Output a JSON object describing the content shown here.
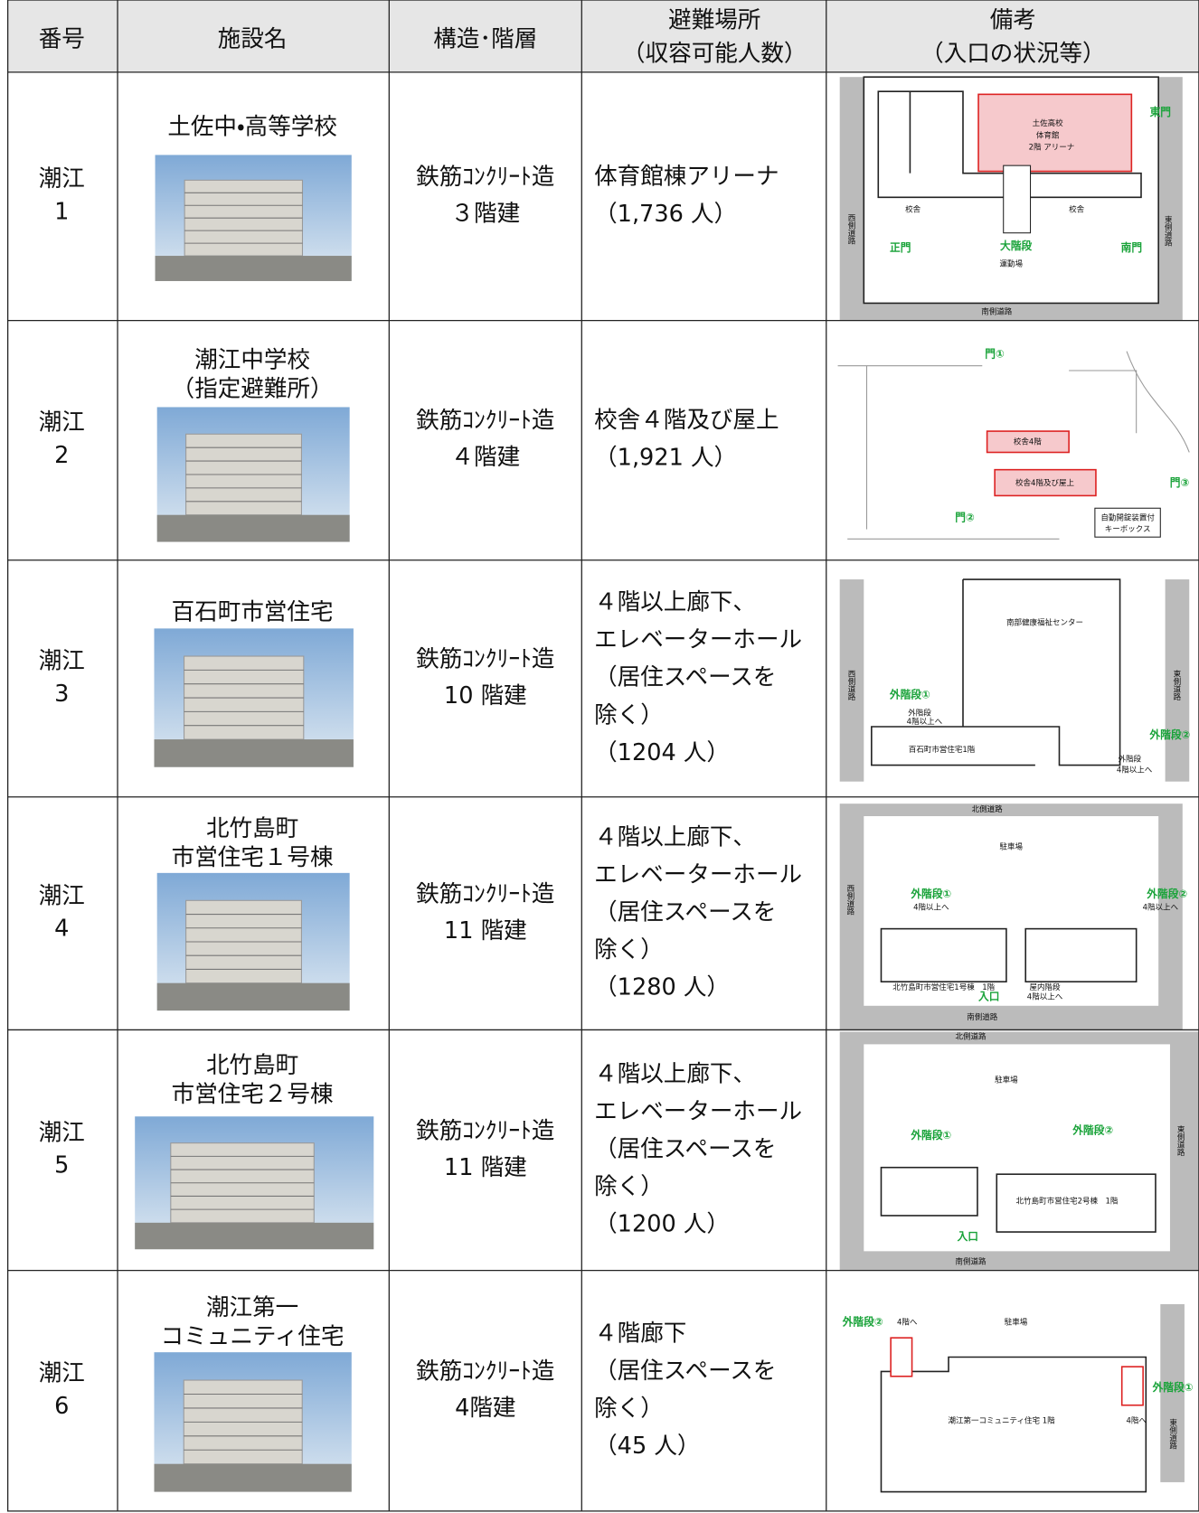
{
  "header": {
    "number": "番号",
    "name": "施設名",
    "structure": "構造･階層",
    "shelter": [
      "避難場所",
      "（収容可能人数）"
    ],
    "remarks": [
      "備考",
      "（入口の状況等）"
    ]
  },
  "rows": [
    {
      "number": [
        "潮江",
        "1"
      ],
      "name": [
        "土佐中・高等学校"
      ],
      "structure": [
        "鉄筋ｺﾝｸﾘｰﾄ造",
        "３階建"
      ],
      "shelter": [
        "体育館棟アリーナ",
        "（1,736 人）"
      ],
      "diagram_labels": [
        "土佐高校",
        "体育館",
        "2階 アリーナ",
        "東門",
        "校舎",
        "校舎",
        "西側道路",
        "正門",
        "大階段",
        "運動場",
        "南門",
        "東側道路",
        "南側道路"
      ]
    },
    {
      "number": [
        "潮江",
        "2"
      ],
      "name": [
        "潮江中学校",
        "（指定避難所）"
      ],
      "structure": [
        "鉄筋ｺﾝｸﾘｰﾄ造",
        "４階建"
      ],
      "shelter": [
        "校舎４階及び屋上",
        "（1,921 人）"
      ],
      "diagram_labels": [
        "門①",
        "校舎4階",
        "校舎4階及び屋上",
        "門③",
        "門②",
        "自動開錠装置付",
        "キーボックス"
      ]
    },
    {
      "number": [
        "潮江",
        "3"
      ],
      "name": [
        "百石町市営住宅"
      ],
      "structure": [
        "鉄筋ｺﾝｸﾘｰﾄ造",
        "10 階建"
      ],
      "shelter": [
        "４階以上廊下、",
        "エレベーターホール",
        "（居住スペースを",
        "除く）",
        "（1204 人）"
      ],
      "diagram_labels": [
        "南部健康福祉センター",
        "西側道路",
        "外階段①",
        "外階段",
        "4階以上へ",
        "百石町市営住宅1階",
        "東側道路",
        "外階段②",
        "外階段",
        "4階以上へ"
      ]
    },
    {
      "number": [
        "潮江",
        "4"
      ],
      "name": [
        "北竹島町",
        "市営住宅１号棟"
      ],
      "structure": [
        "鉄筋ｺﾝｸﾘｰﾄ造",
        "11 階建"
      ],
      "shelter": [
        "４階以上廊下、",
        "エレベーターホール",
        "（居住スペースを",
        "除く）",
        "（1280 人）"
      ],
      "diagram_labels": [
        "北側道路",
        "駐車場",
        "西側道路",
        "外階段①",
        "4階以上へ",
        "外階段②",
        "4階以上へ",
        "北竹島町市営住宅1号棟　1階",
        "屋内階段",
        "4階以上へ",
        "入口",
        "南側道路"
      ]
    },
    {
      "number": [
        "潮江",
        "5"
      ],
      "name": [
        "北竹島町",
        "市営住宅２号棟"
      ],
      "structure": [
        "鉄筋ｺﾝｸﾘｰﾄ造",
        "11 階建"
      ],
      "shelter": [
        "４階以上廊下、",
        "エレベーターホール",
        "（居住スペースを",
        "除く）",
        "（1200 人）"
      ],
      "diagram_labels": [
        "北側道路",
        "駐車場",
        "外階段①",
        "外階段②",
        "東側道路",
        "北竹島町市営住宅2号棟　1階",
        "入口",
        "南側道路"
      ]
    },
    {
      "number": [
        "潮江",
        "6"
      ],
      "name": [
        "潮江第一",
        "コミュニティ住宅"
      ],
      "structure": [
        "鉄筋ｺﾝｸﾘｰﾄ造",
        "4階建"
      ],
      "shelter": [
        "４階廊下",
        "（居住スペースを",
        "除く）",
        "（45 人）"
      ],
      "diagram_labels": [
        "外階段②",
        "4階へ",
        "駐車場",
        "潮江第一コミュニティ住宅 1階",
        "4階へ",
        "外階段①",
        "東側道路"
      ]
    }
  ]
}
